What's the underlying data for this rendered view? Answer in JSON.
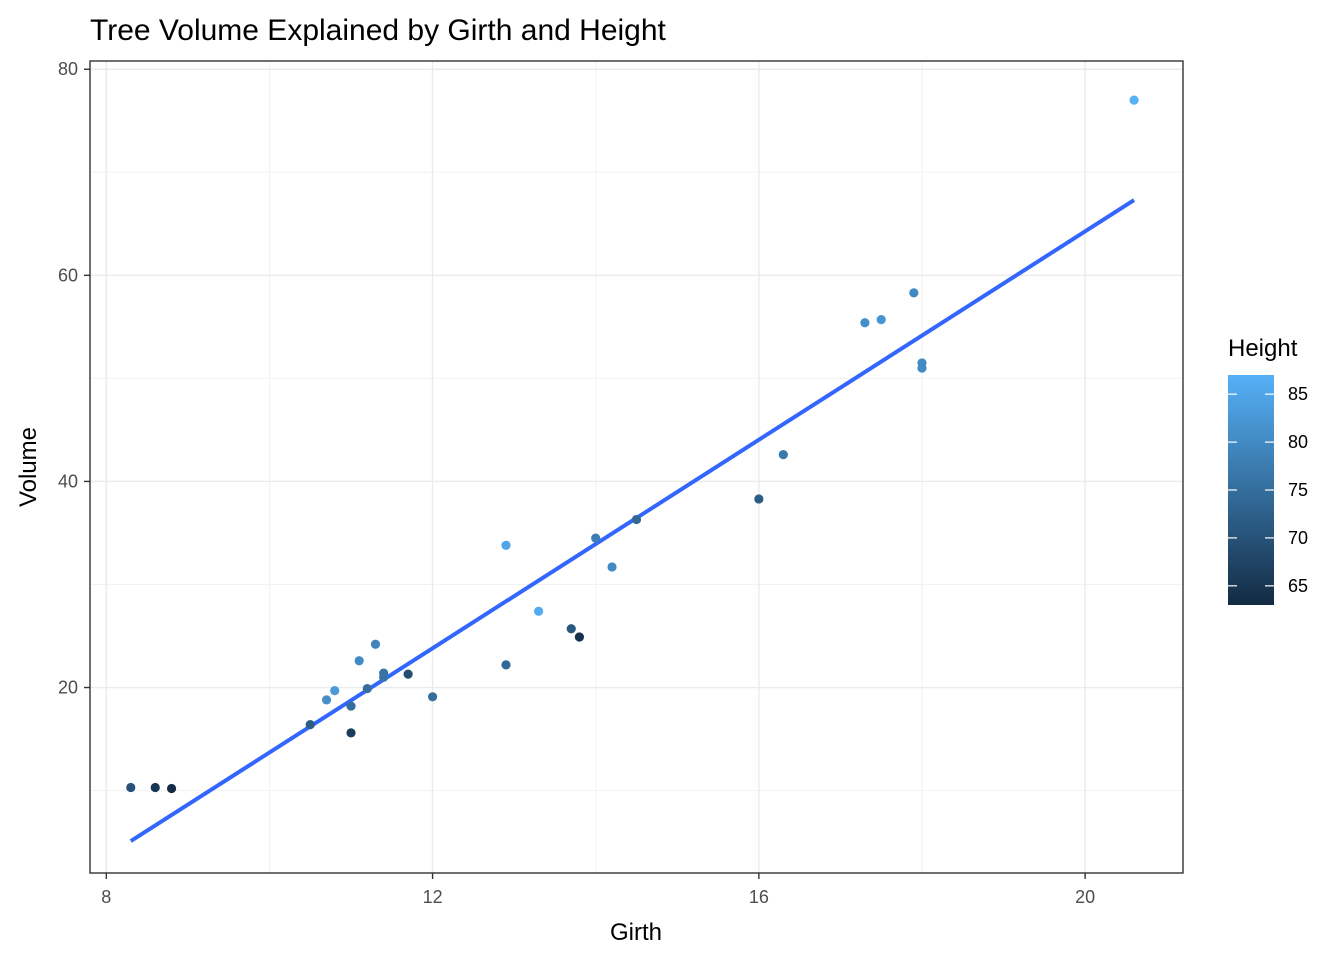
{
  "chart_data": {
    "type": "scatter",
    "title": "Tree Volume Explained by Girth and Height",
    "xlabel": "Girth",
    "ylabel": "Volume",
    "xlim": [
      7.8,
      21.2
    ],
    "ylim": [
      2.0,
      80.8
    ],
    "x_ticks": [
      8,
      12,
      16,
      20
    ],
    "x_tick_labels": [
      "8",
      "12",
      "16",
      "20"
    ],
    "y_ticks": [
      20,
      40,
      60,
      80
    ],
    "y_tick_labels": [
      "20",
      "40",
      "60",
      "80"
    ],
    "grid": true,
    "points": [
      {
        "x": 8.3,
        "y": 10.3,
        "height": 70
      },
      {
        "x": 8.6,
        "y": 10.3,
        "height": 65
      },
      {
        "x": 8.8,
        "y": 10.2,
        "height": 63
      },
      {
        "x": 10.5,
        "y": 16.4,
        "height": 72
      },
      {
        "x": 10.7,
        "y": 18.8,
        "height": 81
      },
      {
        "x": 10.8,
        "y": 19.7,
        "height": 83
      },
      {
        "x": 11.0,
        "y": 15.6,
        "height": 66
      },
      {
        "x": 11.0,
        "y": 18.2,
        "height": 75
      },
      {
        "x": 11.1,
        "y": 22.6,
        "height": 80
      },
      {
        "x": 11.2,
        "y": 19.9,
        "height": 75
      },
      {
        "x": 11.3,
        "y": 24.2,
        "height": 79
      },
      {
        "x": 11.4,
        "y": 21.0,
        "height": 76
      },
      {
        "x": 11.4,
        "y": 21.4,
        "height": 76
      },
      {
        "x": 11.7,
        "y": 21.3,
        "height": 69
      },
      {
        "x": 12.0,
        "y": 19.1,
        "height": 75
      },
      {
        "x": 12.9,
        "y": 22.2,
        "height": 74
      },
      {
        "x": 12.9,
        "y": 33.8,
        "height": 85
      },
      {
        "x": 13.3,
        "y": 27.4,
        "height": 86
      },
      {
        "x": 13.7,
        "y": 25.7,
        "height": 71
      },
      {
        "x": 13.8,
        "y": 24.9,
        "height": 64
      },
      {
        "x": 14.0,
        "y": 34.5,
        "height": 78
      },
      {
        "x": 14.2,
        "y": 31.7,
        "height": 80
      },
      {
        "x": 14.5,
        "y": 36.3,
        "height": 74
      },
      {
        "x": 16.0,
        "y": 38.3,
        "height": 72
      },
      {
        "x": 16.3,
        "y": 42.6,
        "height": 77
      },
      {
        "x": 17.3,
        "y": 55.4,
        "height": 81
      },
      {
        "x": 17.5,
        "y": 55.7,
        "height": 82
      },
      {
        "x": 17.9,
        "y": 58.3,
        "height": 80
      },
      {
        "x": 18.0,
        "y": 51.5,
        "height": 80
      },
      {
        "x": 18.0,
        "y": 51.0,
        "height": 80
      },
      {
        "x": 20.6,
        "y": 77.0,
        "height": 87
      }
    ],
    "fit_line": {
      "x": [
        8.3,
        20.6
      ],
      "y": [
        5.1,
        67.3
      ],
      "color": "#3366FF"
    },
    "legend": {
      "title": "Height",
      "placement": "right",
      "min": 63,
      "max": 87,
      "ticks": [
        65,
        70,
        75,
        80,
        85
      ],
      "tick_labels": [
        "65",
        "70",
        "75",
        "80",
        "85"
      ],
      "low_color": "#132B43",
      "high_color": "#56B1F7"
    }
  }
}
